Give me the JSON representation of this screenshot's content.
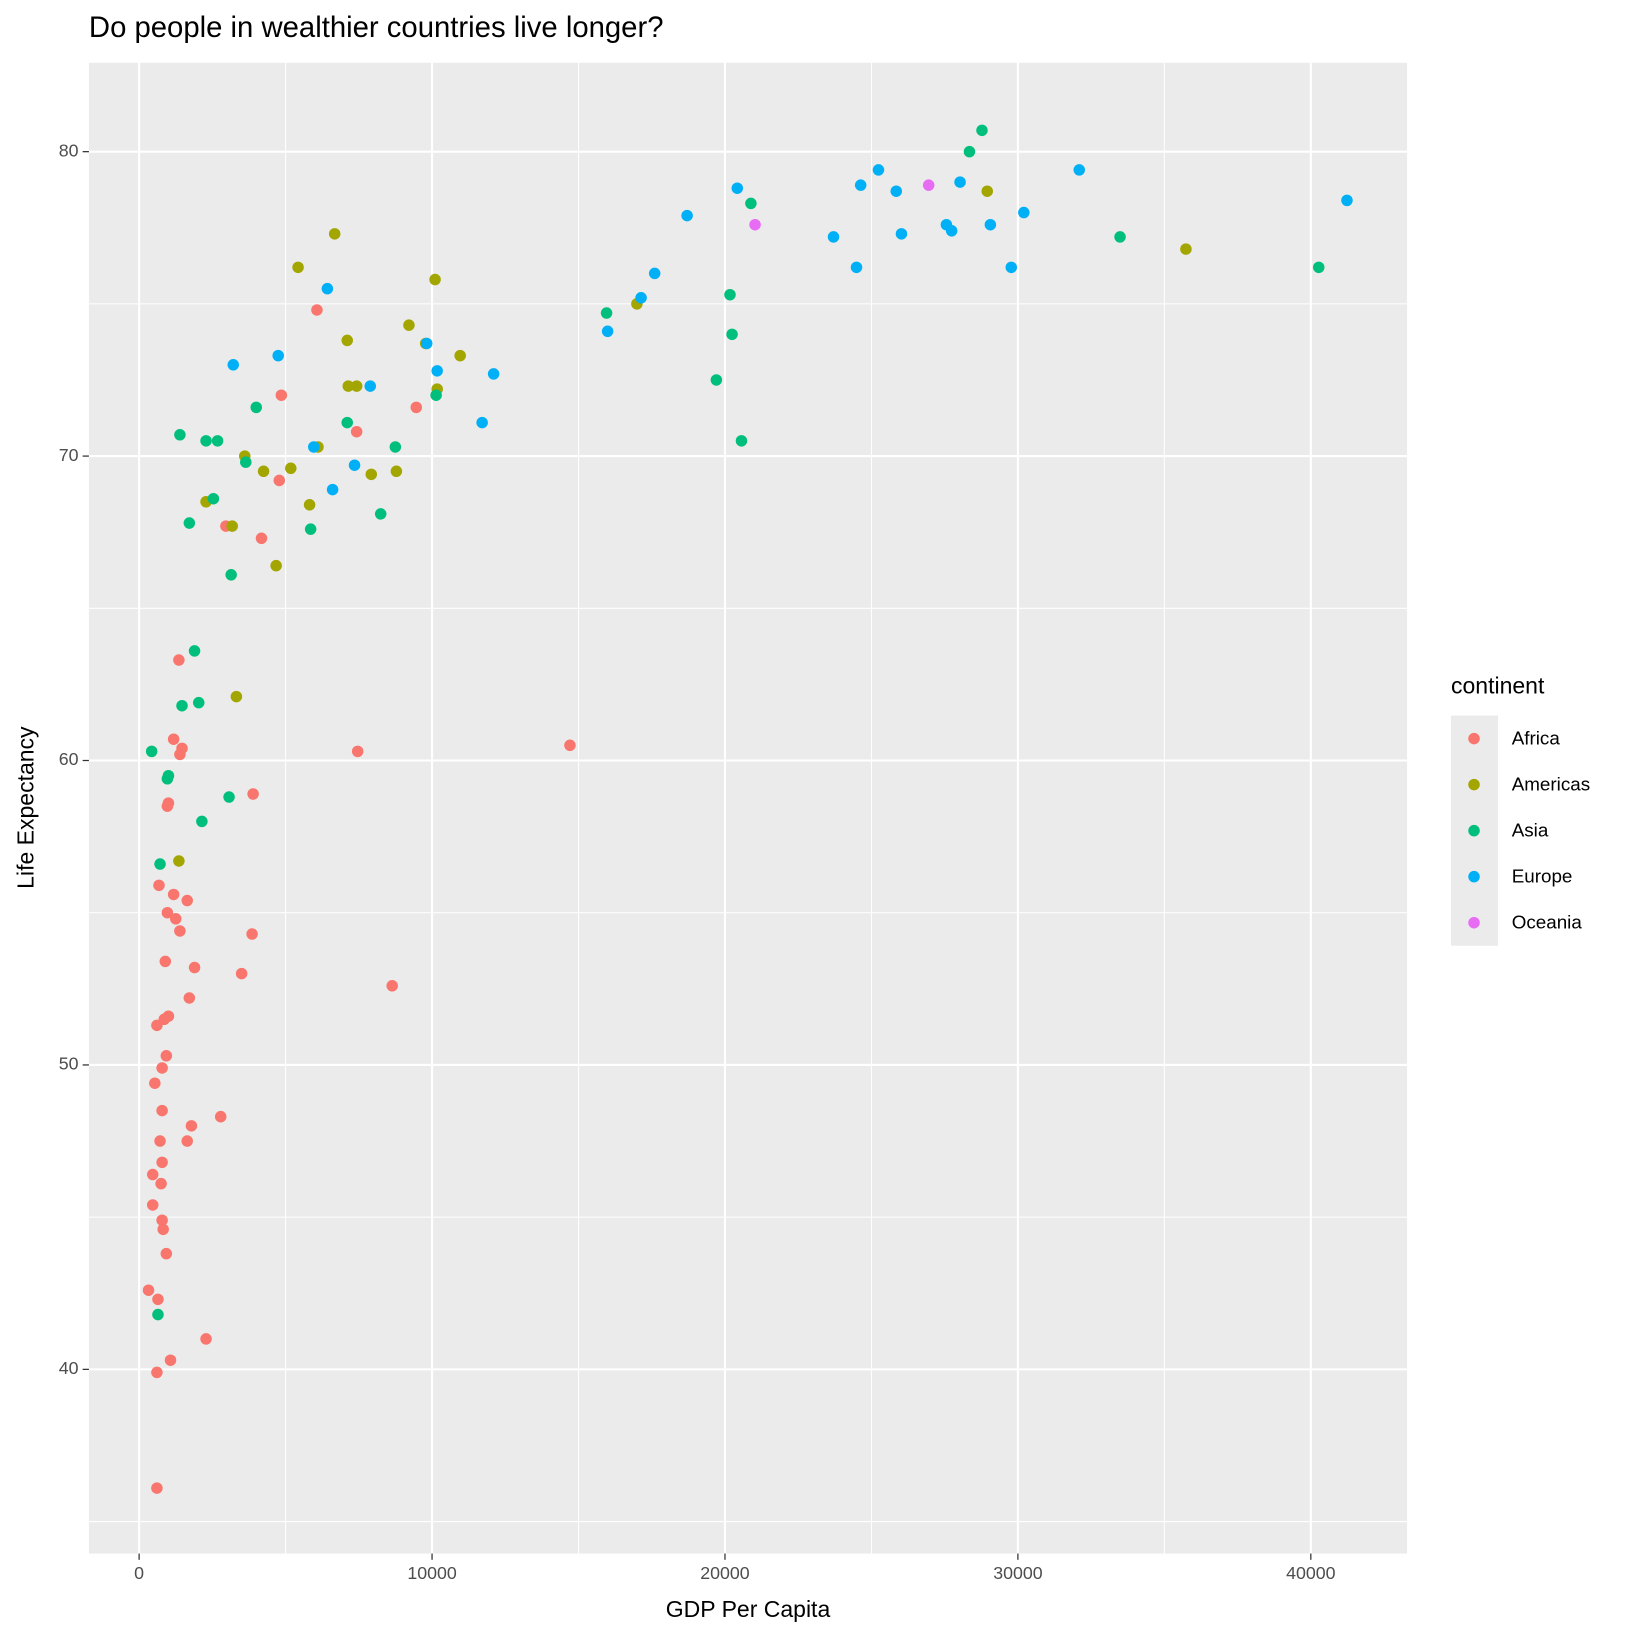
{
  "chart_data": {
    "type": "scatter",
    "title": "Do people in wealthier countries live longer?",
    "x_label": "GDP Per Capita",
    "y_label": "Life Expectancy",
    "legend_title": "continent",
    "legend_position": "right",
    "grid": true,
    "xlim": [
      -1714,
      43286
    ],
    "ylim": [
      33.95,
      82.92
    ],
    "xticks": [
      0,
      10000,
      20000,
      30000,
      40000
    ],
    "yticks": [
      40,
      50,
      60,
      70,
      80
    ],
    "series": [
      {
        "name": "Africa",
        "color": "#F8766D",
        "x": [
          6070,
          4855,
          7426,
          9461,
          4784,
          2963,
          4177,
          1357,
          1178,
          1464,
          1392,
          7461,
          14708,
          1000,
          964,
          3891,
          678,
          1642,
          1178,
          964,
          1250,
          1392,
          3856,
          893,
          1892,
          3499,
          8639,
          1714,
          607,
          857,
          1000,
          928,
          785,
          536,
          785,
          2785,
          1785,
          714,
          1642,
          785,
          750,
          464,
          464,
          785,
          821,
          928,
          321,
          643,
          2285,
          1071,
          607,
          607
        ],
        "values": [
          74.8,
          72.0,
          70.8,
          71.6,
          69.2,
          67.7,
          67.3,
          63.3,
          60.7,
          60.4,
          60.2,
          60.3,
          60.5,
          58.6,
          58.5,
          58.9,
          55.9,
          55.4,
          55.6,
          55.0,
          54.8,
          54.4,
          54.3,
          53.4,
          53.2,
          53.0,
          52.6,
          52.2,
          51.3,
          51.5,
          51.6,
          50.3,
          49.9,
          49.4,
          48.5,
          48.3,
          48.0,
          47.5,
          47.5,
          46.8,
          46.1,
          46.4,
          45.4,
          44.9,
          44.6,
          43.8,
          42.6,
          42.3,
          41.0,
          40.3,
          39.9,
          36.1
        ]
      },
      {
        "name": "Americas",
        "color": "#A3A500",
        "x": [
          6676,
          5426,
          10103,
          9211,
          7104,
          9782,
          10960,
          7140,
          7426,
          10175,
          3606,
          6105,
          5177,
          4248,
          7925,
          8782,
          2285,
          5819,
          3177,
          4677,
          3320,
          1357,
          16993,
          28953,
          35736
        ],
        "values": [
          77.3,
          76.2,
          75.8,
          74.3,
          73.8,
          73.7,
          73.3,
          72.3,
          72.3,
          72.2,
          70.0,
          70.3,
          69.6,
          69.5,
          69.4,
          69.5,
          68.5,
          68.4,
          67.7,
          66.4,
          62.1,
          56.7,
          75.0,
          78.7,
          76.8
        ]
      },
      {
        "name": "Asia",
        "color": "#00BF7D",
        "x": [
          28774,
          28346,
          20885,
          33487,
          40270,
          20171,
          15958,
          20242,
          19706,
          20563,
          3998,
          1392,
          2285,
          2678,
          7104,
          10139,
          8747,
          3641,
          2535,
          1714,
          5855,
          8247,
          3142,
          1892,
          1464,
          2035,
          428,
          1000,
          964,
          3070,
          2142,
          714,
          643
        ],
        "values": [
          80.7,
          80.0,
          78.3,
          77.2,
          76.2,
          75.3,
          74.7,
          74.0,
          72.5,
          70.5,
          71.6,
          70.7,
          70.5,
          70.5,
          71.1,
          72.0,
          70.3,
          69.8,
          68.6,
          67.8,
          67.6,
          68.1,
          66.1,
          63.6,
          61.8,
          61.9,
          60.3,
          59.5,
          59.4,
          58.8,
          58.0,
          56.6,
          41.8
        ]
      },
      {
        "name": "Europe",
        "color": "#00B0F6",
        "x": [
          41234,
          32094,
          30202,
          29774,
          29060,
          28025,
          27560,
          27739,
          26025,
          25847,
          25240,
          24633,
          24490,
          23705,
          20420,
          18707,
          17600,
          17136,
          15994,
          11710,
          12102,
          10175,
          9818,
          7890,
          7354,
          6605,
          5962,
          6426,
          4748,
          3213
        ],
        "values": [
          78.4,
          79.4,
          78.0,
          76.2,
          77.6,
          79.0,
          77.6,
          77.4,
          77.3,
          78.7,
          79.4,
          78.9,
          76.2,
          77.2,
          78.8,
          77.9,
          76.0,
          75.2,
          74.1,
          71.1,
          72.7,
          72.8,
          73.7,
          72.3,
          69.7,
          68.9,
          70.3,
          75.5,
          73.3,
          73.0
        ]
      },
      {
        "name": "Oceania",
        "color": "#E76BF3",
        "x": [
          26954,
          21027
        ],
        "values": [
          78.9,
          77.6
        ]
      }
    ]
  }
}
